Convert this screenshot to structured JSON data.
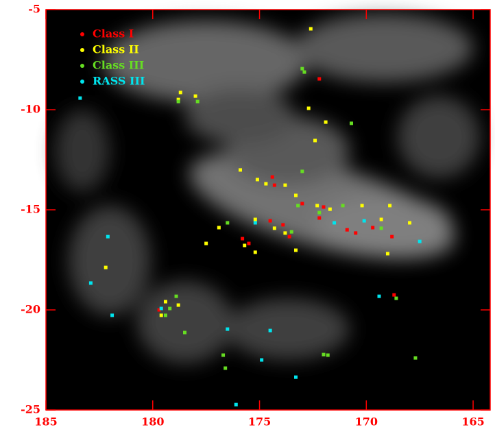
{
  "chart_data": {
    "type": "scatter",
    "xlim": [
      185,
      164.2
    ],
    "ylim": [
      -25,
      -5
    ],
    "xticks": [
      185,
      180,
      175,
      170,
      165
    ],
    "yticks": [
      -5,
      -10,
      -15,
      -20,
      -25
    ],
    "axis_color": "#ff0000",
    "series": [
      {
        "name": "Class I",
        "color": "#ff0000",
        "x": [
          172.2,
          174.4,
          174.3,
          173.0,
          172.0,
          172.2,
          173.9,
          174.5,
          175.8,
          175.5,
          173.6,
          170.9,
          170.5,
          169.7,
          168.8,
          169.3,
          179.7,
          168.7
        ],
        "values": [
          -8.46,
          -13.36,
          -13.77,
          -14.69,
          -14.86,
          -15.41,
          -15.75,
          -15.55,
          -16.44,
          -16.68,
          -16.34,
          -16.0,
          -16.16,
          -15.89,
          -16.34,
          -15.48,
          -20.0,
          -19.25
        ]
      },
      {
        "name": "Class II",
        "color": "#ffff00",
        "x": [
          172.6,
          178.7,
          178.8,
          178.0,
          172.7,
          171.9,
          172.4,
          175.9,
          175.1,
          174.7,
          173.8,
          173.3,
          172.3,
          171.7,
          170.2,
          168.9,
          169.3,
          167.97,
          175.2,
          174.3,
          173.8,
          173.3,
          175.2,
          175.7,
          176.9,
          177.5,
          169.0,
          182.2,
          179.4,
          179.6,
          178.8
        ],
        "values": [
          -5.96,
          -9.14,
          -9.49,
          -9.32,
          -9.93,
          -10.62,
          -11.54,
          -13.01,
          -13.49,
          -13.7,
          -13.77,
          -14.28,
          -14.79,
          -14.97,
          -14.79,
          -14.79,
          -15.48,
          -15.65,
          -15.48,
          -15.92,
          -16.16,
          -17.02,
          -17.12,
          -16.78,
          -15.89,
          -16.68,
          -17.19,
          -17.88,
          -19.59,
          -20.27,
          -19.76
        ]
      },
      {
        "name": "Class III",
        "color": "#66dd22",
        "x": [
          173.0,
          172.9,
          178.8,
          177.9,
          170.7,
          173.0,
          173.2,
          172.2,
          171.1,
          169.3,
          176.5,
          173.5,
          179.2,
          178.9,
          178.5,
          176.7,
          176.6,
          172.0,
          171.8,
          167.7,
          168.6,
          179.4
        ],
        "values": [
          -7.95,
          -8.12,
          -9.59,
          -9.59,
          -10.68,
          -13.08,
          -14.79,
          -15.14,
          -14.79,
          -15.92,
          -15.65,
          -16.1,
          -19.93,
          -19.32,
          -21.13,
          -22.26,
          -22.91,
          -22.23,
          -22.26,
          -22.4,
          -19.42,
          -20.27
        ]
      },
      {
        "name": "RASS III",
        "color": "#00e5ee",
        "x": [
          183.4,
          182.1,
          182.9,
          181.9,
          179.6,
          176.5,
          174.5,
          174.9,
          173.3,
          176.1,
          175.2,
          171.5,
          169.4,
          167.5,
          170.1
        ],
        "values": [
          -9.42,
          -16.34,
          -18.66,
          -20.27,
          -19.93,
          -20.96,
          -21.03,
          -22.5,
          -23.36,
          -24.73,
          -15.65,
          -15.65,
          -19.32,
          -16.58,
          -15.55
        ]
      }
    ]
  }
}
